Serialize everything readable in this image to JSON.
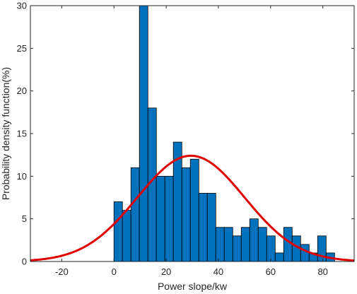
{
  "chart_data": {
    "type": "bar",
    "title": "",
    "xlabel": "Power slope/kw",
    "ylabel": "Probability density function(%)",
    "xlim": [
      -32,
      92
    ],
    "ylim": [
      0,
      30
    ],
    "xticks": [
      -20,
      0,
      20,
      40,
      60,
      80
    ],
    "yticks": [
      0,
      5,
      10,
      15,
      20,
      25,
      30
    ],
    "grid": false,
    "bar_color": "#0072BD",
    "curve_color": "#E00000",
    "bin_width": 3.25,
    "bin_start": 0,
    "values": [
      7,
      6,
      11,
      30,
      18,
      10,
      10,
      14,
      11,
      12,
      8,
      8,
      4,
      4,
      3,
      4,
      5,
      4,
      3,
      1,
      4,
      3,
      2,
      1,
      3,
      1
    ],
    "fit_curve": {
      "type": "normal",
      "mean": 29.5,
      "std": 20.5,
      "peak": 12.4
    }
  }
}
